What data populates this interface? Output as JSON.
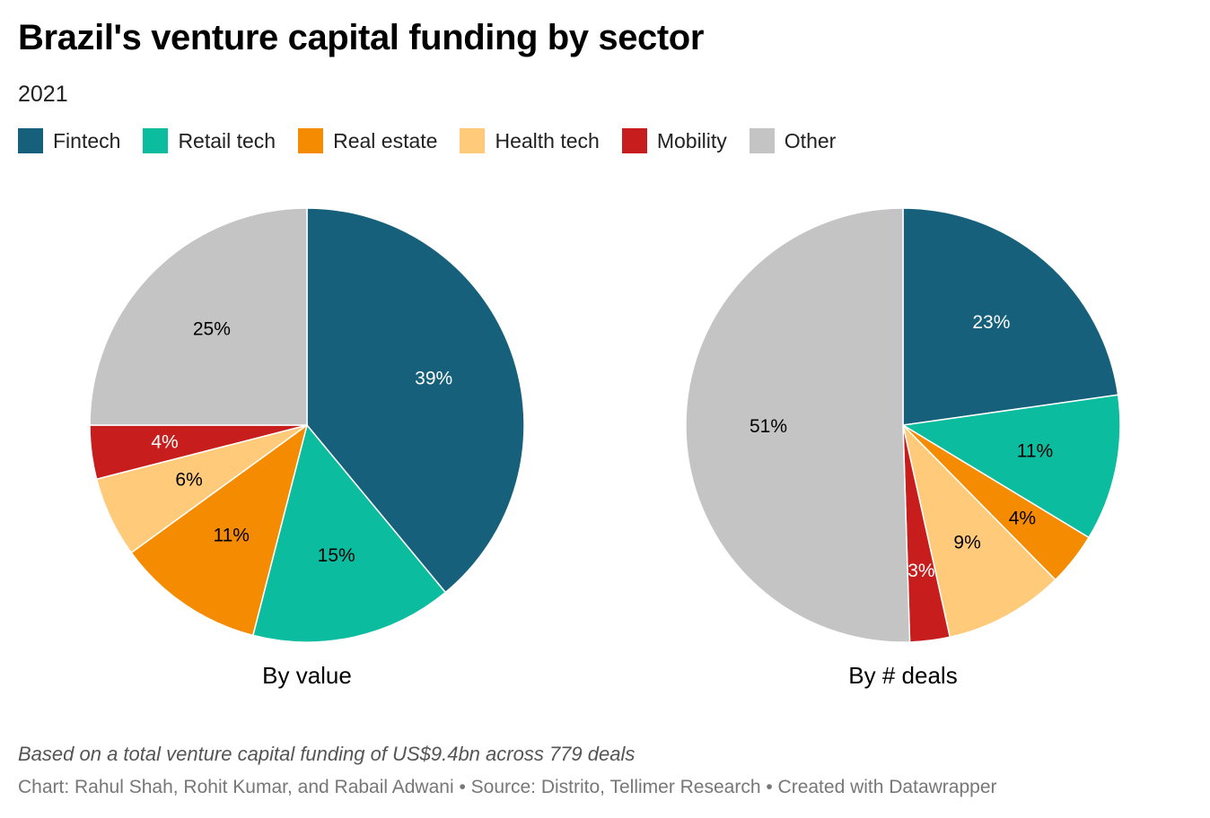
{
  "header": {
    "title": "Brazil's venture capital funding by sector",
    "subtitle": "2021"
  },
  "legend": [
    {
      "label": "Fintech",
      "color": "#17607b"
    },
    {
      "label": "Retail tech",
      "color": "#0bbc9f"
    },
    {
      "label": "Real estate",
      "color": "#f58b00"
    },
    {
      "label": "Health tech",
      "color": "#ffcb7a"
    },
    {
      "label": "Mobility",
      "color": "#c71e1d"
    },
    {
      "label": "Other",
      "color": "#c4c4c4"
    }
  ],
  "chart_data": [
    {
      "type": "pie",
      "title": "By value",
      "categories": [
        "Fintech",
        "Retail tech",
        "Real estate",
        "Health tech",
        "Mobility",
        "Other"
      ],
      "values": [
        39,
        15,
        11,
        6,
        4,
        25
      ],
      "labels": [
        "39%",
        "15%",
        "11%",
        "6%",
        "4%",
        "25%"
      ],
      "colors": [
        "#17607b",
        "#0bbc9f",
        "#f58b00",
        "#ffcb7a",
        "#c71e1d",
        "#c4c4c4"
      ],
      "label_colors": [
        "#ffffff",
        "#000000",
        "#000000",
        "#000000",
        "#ffffff",
        "#000000"
      ]
    },
    {
      "type": "pie",
      "title": "By # deals",
      "categories": [
        "Fintech",
        "Retail tech",
        "Real estate",
        "Health tech",
        "Mobility",
        "Other"
      ],
      "values": [
        23,
        11,
        4,
        9,
        3,
        51
      ],
      "labels": [
        "23%",
        "11%",
        "4%",
        "9%",
        "3%",
        "51%"
      ],
      "colors": [
        "#17607b",
        "#0bbc9f",
        "#f58b00",
        "#ffcb7a",
        "#c71e1d",
        "#c4c4c4"
      ],
      "label_colors": [
        "#ffffff",
        "#000000",
        "#000000",
        "#000000",
        "#ffffff",
        "#000000"
      ]
    }
  ],
  "footer": {
    "note": "Based on a total venture capital funding of US$9.4bn across 779 deals",
    "credits": "Chart: Rahul Shah, Rohit Kumar, and Rabail Adwani • Source: Distrito, Tellimer Research • Created with Datawrapper"
  }
}
